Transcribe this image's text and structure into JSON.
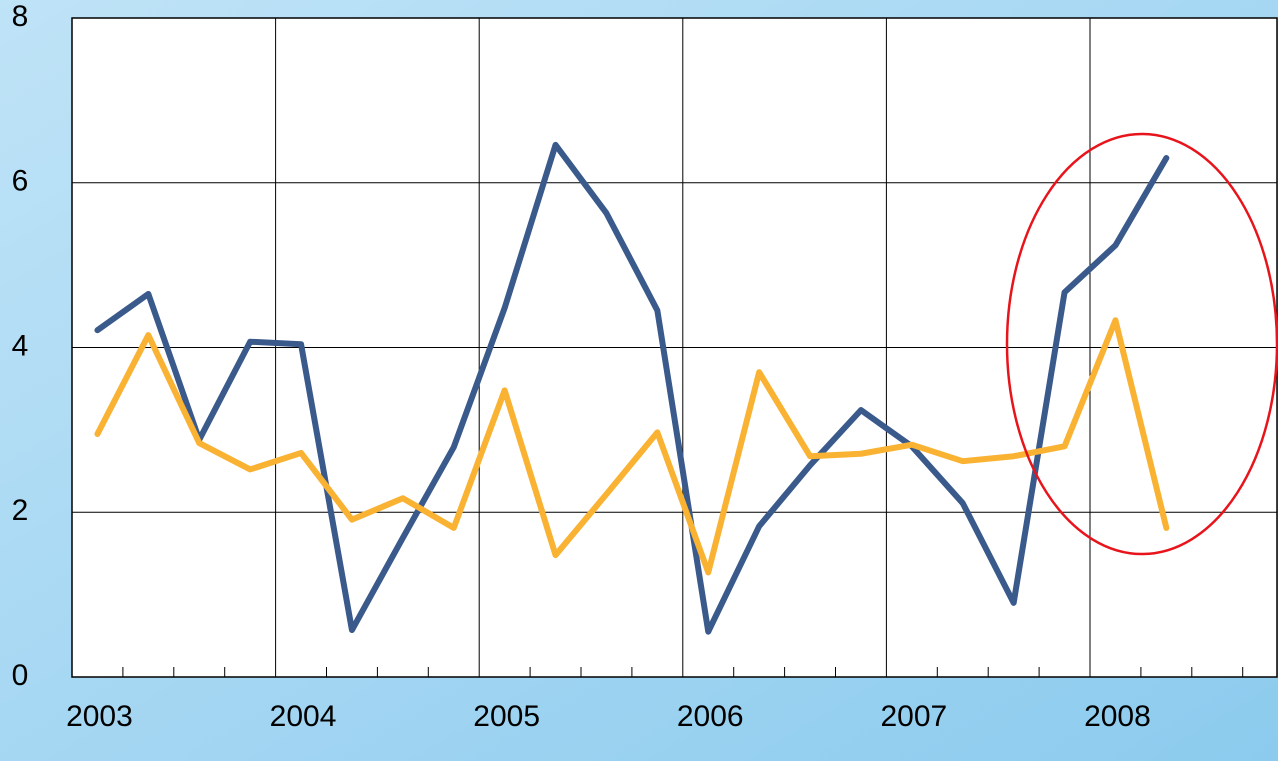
{
  "chart_data": {
    "type": "line",
    "categories": [
      "2003",
      null,
      null,
      null,
      "2004",
      null,
      null,
      null,
      "2005",
      null,
      null,
      null,
      "2006",
      null,
      null,
      null,
      "2007",
      null,
      null,
      null,
      "2008",
      null,
      null,
      null
    ],
    "series": [
      {
        "color": "#3a5a8c",
        "values": [
          4.21,
          4.65,
          2.88,
          4.07,
          4.04,
          0.57,
          1.69,
          2.79,
          4.48,
          6.46,
          5.63,
          4.45,
          0.55,
          1.83,
          2.57,
          3.24,
          2.8,
          2.11,
          0.9,
          4.67,
          5.24,
          6.3,
          null,
          null
        ]
      },
      {
        "color": "#f9b232",
        "values": [
          2.95,
          4.15,
          2.84,
          2.52,
          2.72,
          1.91,
          2.17,
          1.81,
          3.48,
          1.48,
          2.22,
          2.97,
          1.27,
          3.7,
          2.68,
          2.71,
          2.82,
          2.62,
          2.68,
          2.8,
          4.33,
          1.81,
          null,
          null
        ]
      }
    ],
    "ylim": [
      0,
      8
    ],
    "yticks": [
      0,
      2,
      4,
      6,
      8
    ],
    "grid": true
  }
}
